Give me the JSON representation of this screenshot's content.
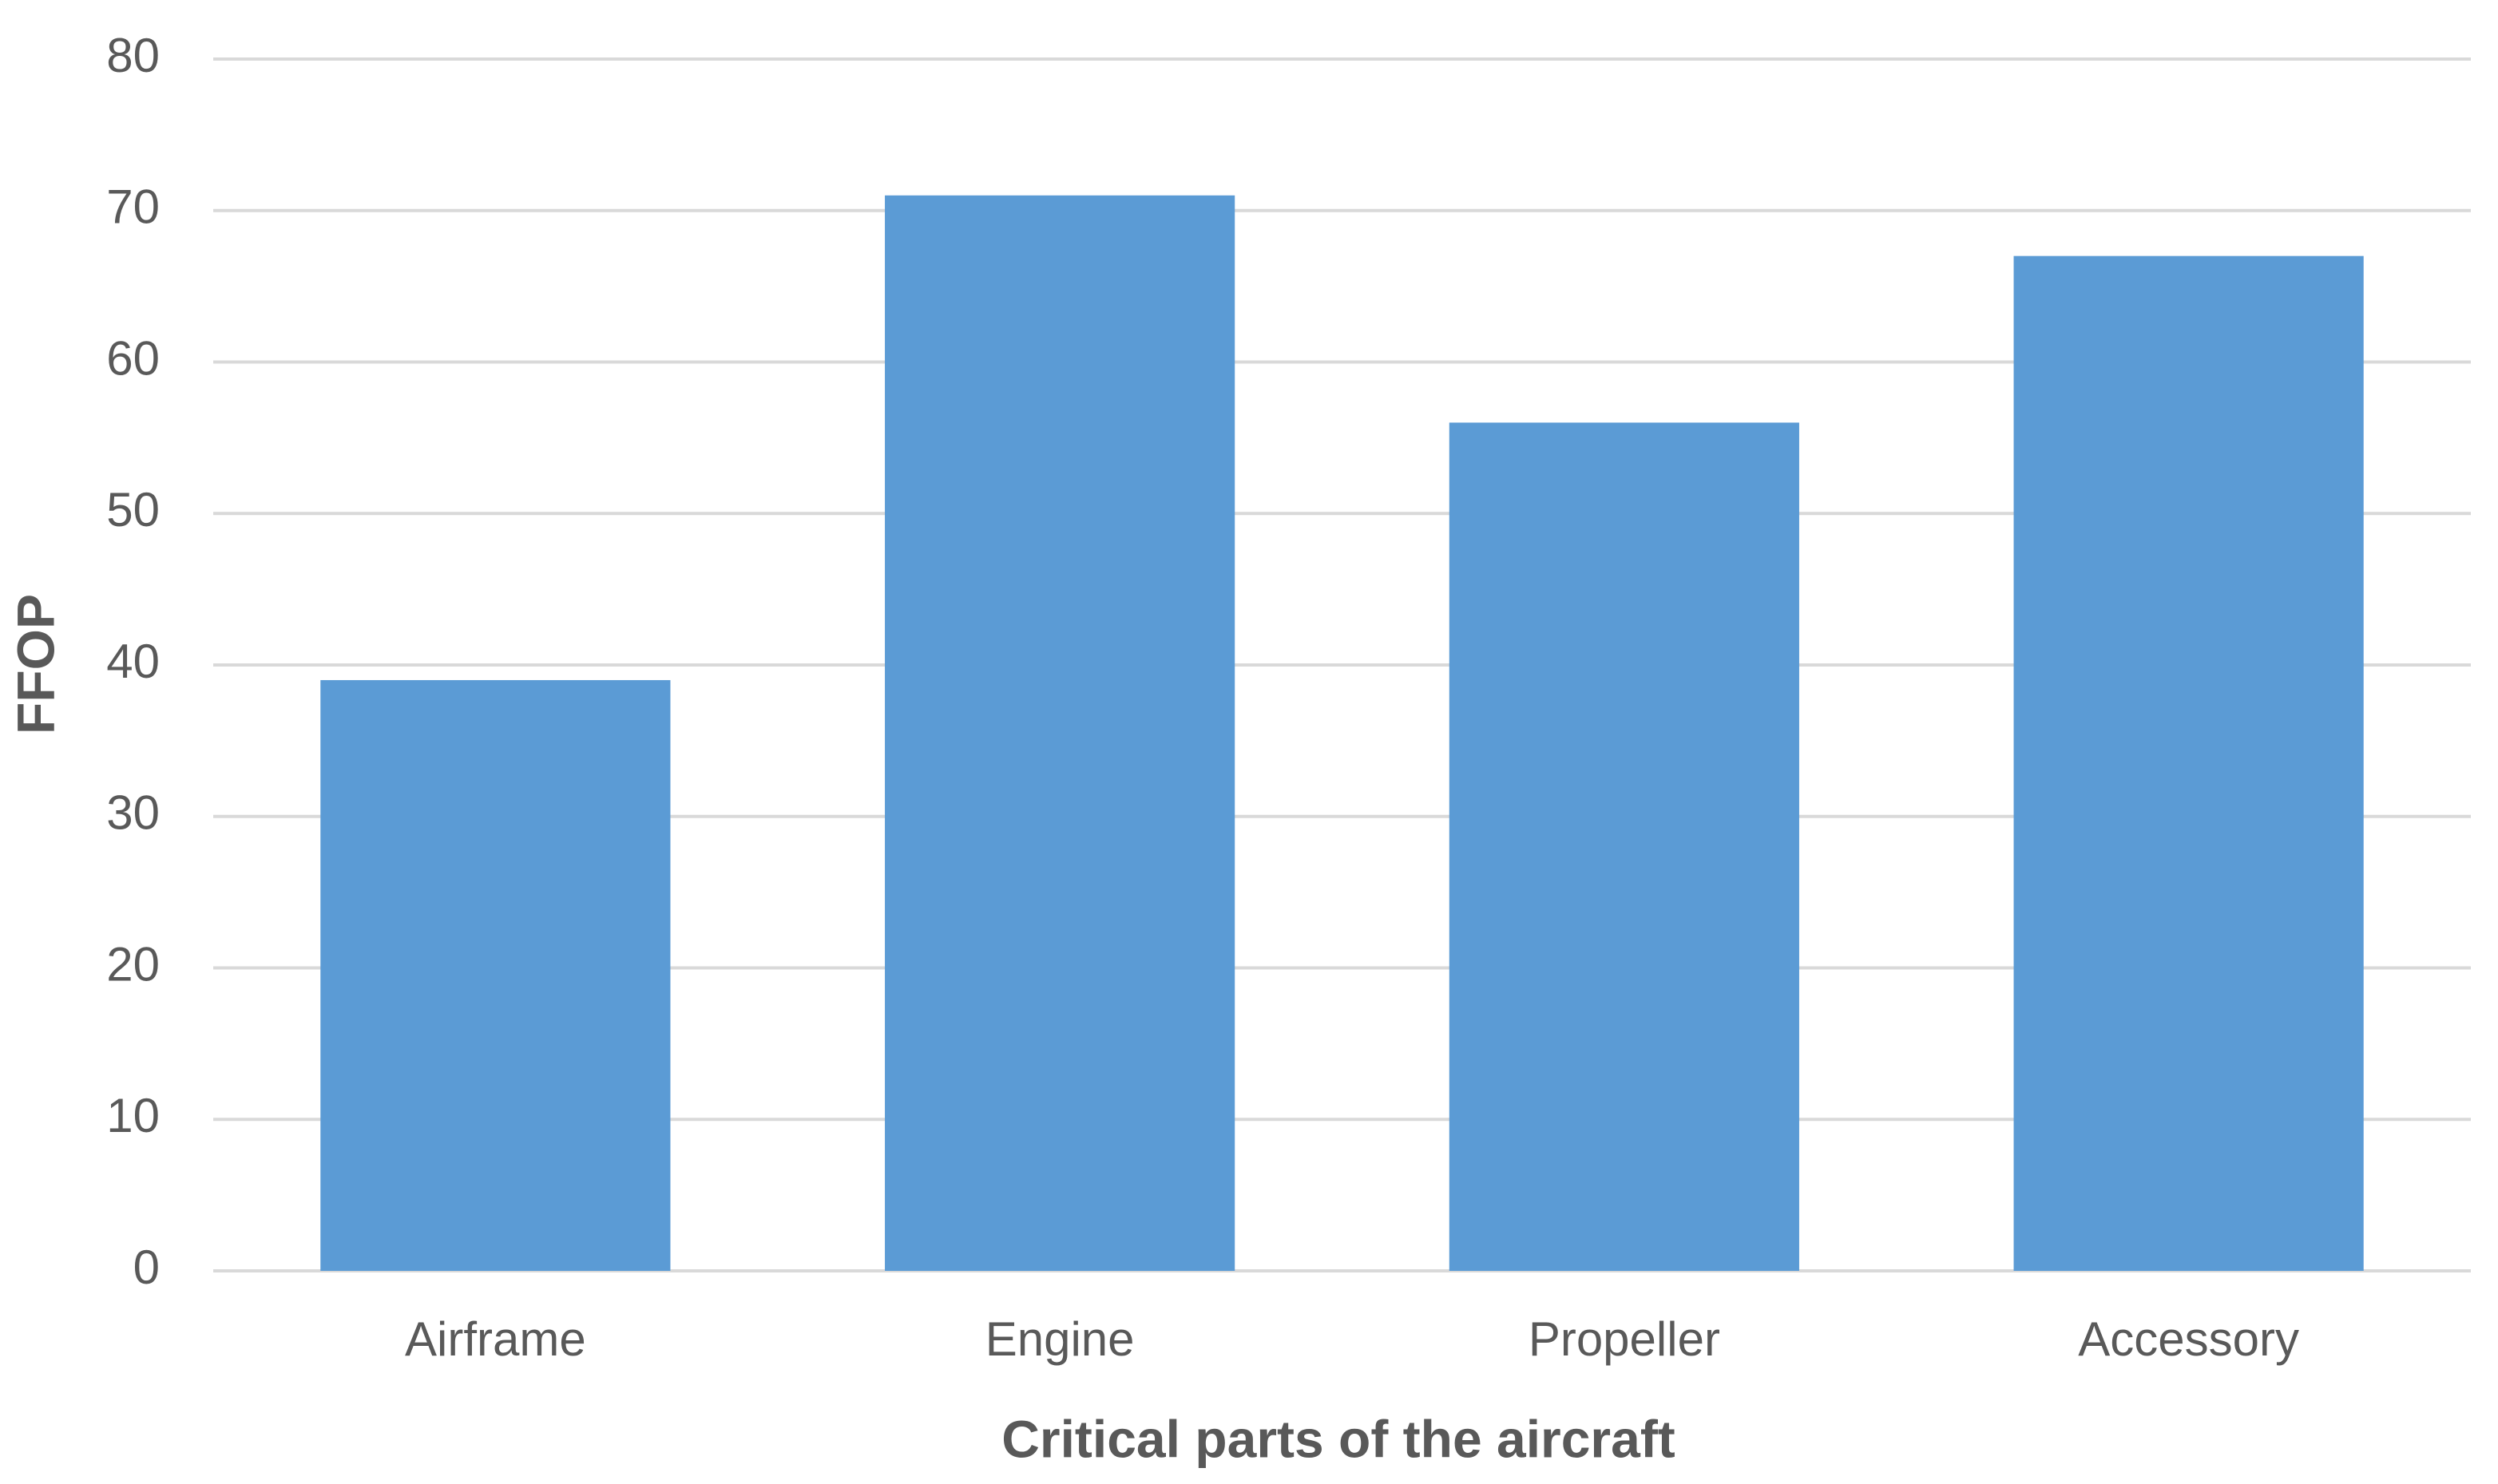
{
  "chart_data": {
    "type": "bar",
    "x_label": "Critical parts of the aircraft",
    "y_label": "FFOP",
    "categories": [
      "Airframe",
      "Engine",
      "Propeller",
      "Accessory"
    ],
    "values": [
      39,
      71,
      56,
      67
    ],
    "color": "#5b9bd5",
    "ylim": [
      0,
      80
    ],
    "yticks": [
      0,
      10,
      20,
      30,
      40,
      50,
      60,
      70,
      80
    ],
    "grid": true
  }
}
